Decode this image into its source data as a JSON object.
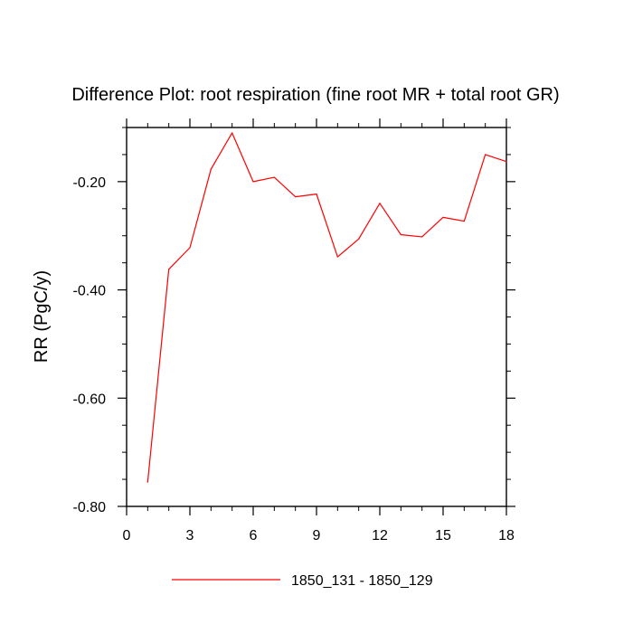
{
  "chart_data": {
    "type": "line",
    "title": "Difference Plot: root respiration (fine root MR + total root GR)",
    "xlabel": "",
    "ylabel": "RR  (PgC/y)",
    "xlim": [
      0,
      18
    ],
    "ylim": [
      -0.8,
      -0.1
    ],
    "x_ticks": [
      0,
      3,
      6,
      9,
      12,
      15,
      18
    ],
    "x_tick_labels": [
      "0",
      "3",
      "6",
      "9",
      "12",
      "15",
      "18"
    ],
    "y_ticks": [
      -0.8,
      -0.6,
      -0.4,
      -0.2
    ],
    "y_tick_labels": [
      "-0.80",
      "-0.60",
      "-0.40",
      "-0.20"
    ],
    "grid": false,
    "legend_position": "bottom",
    "series": [
      {
        "name": "1850_131 - 1850_129",
        "color": "#ff0000",
        "x": [
          1,
          2,
          3,
          4,
          5,
          6,
          7,
          8,
          9,
          10,
          11,
          12,
          13,
          14,
          15,
          16,
          17,
          18
        ],
        "values": [
          -0.755,
          -0.362,
          -0.322,
          -0.177,
          -0.11,
          -0.2,
          -0.192,
          -0.228,
          -0.223,
          -0.339,
          -0.306,
          -0.24,
          -0.298,
          -0.302,
          -0.266,
          -0.273,
          -0.15,
          -0.163
        ]
      }
    ]
  }
}
